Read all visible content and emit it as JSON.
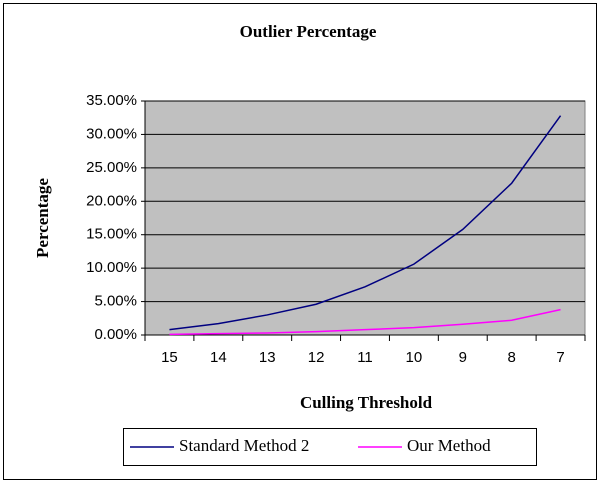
{
  "chart_data": {
    "type": "line",
    "title": "Outlier Percentage",
    "x_label": "Culling Threshold",
    "y_label": "Percentage",
    "categories": [
      "15",
      "14",
      "13",
      "12",
      "11",
      "10",
      "9",
      "8",
      "7"
    ],
    "series": [
      {
        "name": "Standard Method 2",
        "color": "#000080",
        "values": [
          0.8,
          1.7,
          3.0,
          4.6,
          7.2,
          10.6,
          15.8,
          22.7,
          32.8
        ]
      },
      {
        "name": "Our Method",
        "color": "#ff00ff",
        "values": [
          0.1,
          0.2,
          0.3,
          0.5,
          0.8,
          1.1,
          1.6,
          2.2,
          3.8
        ]
      }
    ],
    "ylim": [
      0,
      35
    ],
    "yticks": [
      {
        "value": 0,
        "label": "0.00%"
      },
      {
        "value": 5,
        "label": "5.00%"
      },
      {
        "value": 10,
        "label": "10.00%"
      },
      {
        "value": 15,
        "label": "15.00%"
      },
      {
        "value": 20,
        "label": "20.00%"
      },
      {
        "value": 25,
        "label": "25.00%"
      },
      {
        "value": 30,
        "label": "30.00%"
      },
      {
        "value": 35,
        "label": "35.00%"
      }
    ],
    "grid": true
  }
}
